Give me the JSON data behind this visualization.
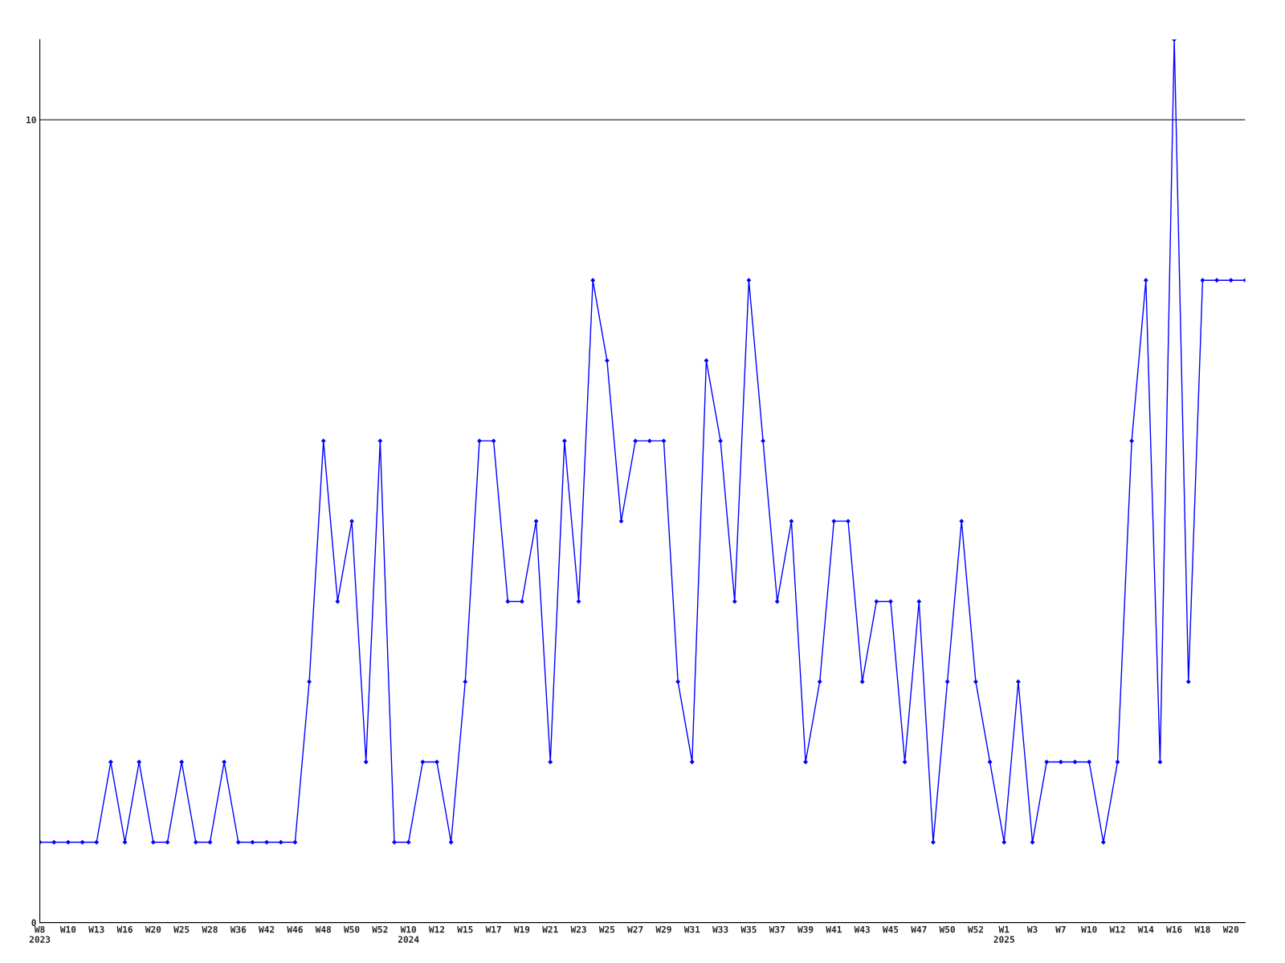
{
  "chart_data": {
    "type": "line",
    "categories": [
      "W8\n2023",
      null,
      "W10",
      null,
      "W13",
      null,
      "W16",
      null,
      "W20",
      null,
      "W25",
      null,
      "W28",
      null,
      "W36",
      null,
      "W42",
      null,
      "W46",
      null,
      "W48",
      null,
      "W50",
      null,
      "W52",
      null,
      "W10\n2024",
      null,
      "W12",
      null,
      "W15",
      null,
      "W17",
      null,
      "W19",
      null,
      "W21",
      null,
      "W23",
      null,
      "W25",
      null,
      "W27",
      null,
      "W29",
      null,
      "W31",
      null,
      "W33",
      null,
      "W35",
      null,
      "W37",
      null,
      "W39",
      null,
      "W41",
      null,
      "W43",
      null,
      "W45",
      null,
      "W47",
      null,
      "W50",
      null,
      "W52",
      null,
      "W1\n2025",
      null,
      "W3",
      null,
      "W7",
      null,
      "W10",
      null,
      "W12",
      null,
      "W14",
      null,
      "W16",
      null,
      "W18",
      null,
      "W20",
      null
    ],
    "series": [
      {
        "color": "#0000ff",
        "values": [
          1,
          1,
          1,
          1,
          1,
          2,
          1,
          2,
          1,
          1,
          2,
          1,
          1,
          2,
          1,
          1,
          1,
          1,
          1,
          3,
          6,
          4,
          5,
          2,
          6,
          1,
          1,
          2,
          2,
          1,
          3,
          6,
          6,
          4,
          4,
          5,
          2,
          6,
          4,
          8,
          7,
          5,
          6,
          6,
          6,
          3,
          2,
          7,
          6,
          4,
          8,
          6,
          4,
          5,
          2,
          3,
          5,
          5,
          3,
          4,
          4,
          2,
          4,
          1,
          3,
          5,
          3,
          2,
          1,
          3,
          1,
          2,
          2,
          2,
          2,
          1,
          2,
          6,
          8,
          2,
          11,
          3,
          8,
          8,
          8,
          8
        ]
      }
    ],
    "ylim": [
      0,
      11
    ],
    "yticks": [
      0,
      10
    ],
    "grid": "y",
    "marker": "diamond",
    "line_style": "solid",
    "legend": false
  }
}
